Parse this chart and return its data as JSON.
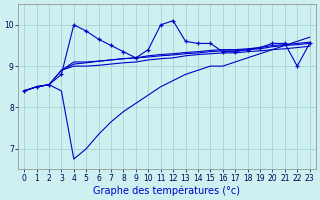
{
  "xlabel": "Graphe des températures (°c)",
  "background_color": "#cef0f0",
  "line_color": "#0000cc",
  "grid_color": "#a8d8d8",
  "xlim": [
    -0.5,
    23.5
  ],
  "ylim": [
    6.5,
    10.5
  ],
  "yticks": [
    7,
    8,
    9,
    10
  ],
  "xticks": [
    0,
    1,
    2,
    3,
    4,
    5,
    6,
    7,
    8,
    9,
    10,
    11,
    12,
    13,
    14,
    15,
    16,
    17,
    18,
    19,
    20,
    21,
    22,
    23
  ],
  "series": [
    {
      "x": [
        0,
        1,
        2,
        3,
        4,
        5,
        6,
        7,
        8,
        9,
        10,
        11,
        12,
        13,
        14,
        15,
        16,
        17,
        18,
        19,
        20,
        21,
        22,
        23
      ],
      "y": [
        8.4,
        8.5,
        8.55,
        8.8,
        10.0,
        9.85,
        9.65,
        9.5,
        9.35,
        9.2,
        9.4,
        10.0,
        10.1,
        9.6,
        9.55,
        9.55,
        9.35,
        9.35,
        9.4,
        9.45,
        9.55,
        9.55,
        9.0,
        9.55
      ],
      "marker": "+"
    },
    {
      "x": [
        0,
        1,
        2,
        3,
        4,
        5,
        6,
        7,
        8,
        9,
        10,
        11,
        12,
        13,
        14,
        15,
        16,
        17,
        18,
        19,
        20,
        21,
        22,
        23
      ],
      "y": [
        8.4,
        8.5,
        8.55,
        8.4,
        6.75,
        7.0,
        7.35,
        7.65,
        7.9,
        8.1,
        8.3,
        8.5,
        8.65,
        8.8,
        8.9,
        9.0,
        9.0,
        9.1,
        9.2,
        9.3,
        9.4,
        9.5,
        9.6,
        9.7
      ],
      "marker": null
    },
    {
      "x": [
        0,
        1,
        2,
        3,
        4,
        5,
        6,
        7,
        8,
        9,
        10,
        11,
        12,
        13,
        14,
        15,
        16,
        17,
        18,
        19,
        20,
        21,
        22,
        23
      ],
      "y": [
        8.4,
        8.5,
        8.55,
        8.9,
        9.0,
        9.0,
        9.02,
        9.05,
        9.08,
        9.1,
        9.15,
        9.18,
        9.2,
        9.25,
        9.28,
        9.3,
        9.32,
        9.32,
        9.35,
        9.37,
        9.4,
        9.42,
        9.45,
        9.48
      ],
      "marker": null
    },
    {
      "x": [
        0,
        1,
        2,
        3,
        4,
        5,
        6,
        7,
        8,
        9,
        10,
        11,
        12,
        13,
        14,
        15,
        16,
        17,
        18,
        19,
        20,
        21,
        22,
        23
      ],
      "y": [
        8.4,
        8.5,
        8.55,
        8.9,
        9.05,
        9.08,
        9.12,
        9.15,
        9.18,
        9.2,
        9.25,
        9.28,
        9.3,
        9.33,
        9.35,
        9.38,
        9.4,
        9.4,
        9.42,
        9.45,
        9.5,
        9.52,
        9.55,
        9.58
      ],
      "marker": null
    },
    {
      "x": [
        3,
        4,
        5,
        6,
        7,
        8,
        9,
        10,
        11,
        12,
        13,
        14,
        15,
        16,
        17,
        18,
        19,
        20,
        21,
        22,
        23
      ],
      "y": [
        8.9,
        9.1,
        9.1,
        9.12,
        9.15,
        9.18,
        9.2,
        9.22,
        9.25,
        9.27,
        9.3,
        9.32,
        9.35,
        9.37,
        9.37,
        9.4,
        9.42,
        9.47,
        9.5,
        9.52,
        9.55
      ],
      "marker": null
    }
  ]
}
